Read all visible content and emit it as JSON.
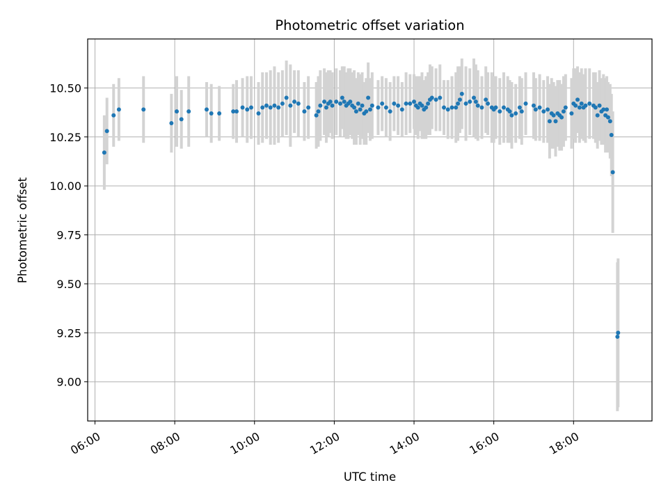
{
  "chart_data": {
    "type": "scatter",
    "title": "Photometric offset variation",
    "xlabel": "UTC time",
    "ylabel": "Photometric offset",
    "xlim": [
      "05:49",
      "19:58"
    ],
    "ylim": [
      8.8,
      10.75
    ],
    "x_ticks": [
      "06:00",
      "08:00",
      "10:00",
      "12:00",
      "14:00",
      "16:00",
      "18:00"
    ],
    "y_ticks": [
      "9.00",
      "9.25",
      "9.50",
      "9.75",
      "10.00",
      "10.25",
      "10.50"
    ],
    "grid": true,
    "errorbar_color": "#d3d3d3",
    "point_color": "#1f77b4",
    "points": [
      {
        "x": "06:14",
        "y": 10.17,
        "err": 0.19
      },
      {
        "x": "06:18",
        "y": 10.28,
        "err": 0.17
      },
      {
        "x": "06:28",
        "y": 10.36,
        "err": 0.16
      },
      {
        "x": "06:36",
        "y": 10.39,
        "err": 0.16
      },
      {
        "x": "07:13",
        "y": 10.39,
        "err": 0.17
      },
      {
        "x": "07:55",
        "y": 10.32,
        "err": 0.15
      },
      {
        "x": "08:03",
        "y": 10.38,
        "err": 0.18
      },
      {
        "x": "08:10",
        "y": 10.34,
        "err": 0.15
      },
      {
        "x": "08:21",
        "y": 10.38,
        "err": 0.18
      },
      {
        "x": "08:48",
        "y": 10.39,
        "err": 0.14
      },
      {
        "x": "08:55",
        "y": 10.37,
        "err": 0.15
      },
      {
        "x": "09:07",
        "y": 10.37,
        "err": 0.14
      },
      {
        "x": "09:28",
        "y": 10.38,
        "err": 0.14
      },
      {
        "x": "09:33",
        "y": 10.38,
        "err": 0.16
      },
      {
        "x": "09:42",
        "y": 10.4,
        "err": 0.15
      },
      {
        "x": "09:49",
        "y": 10.39,
        "err": 0.17
      },
      {
        "x": "09:55",
        "y": 10.4,
        "err": 0.16
      },
      {
        "x": "10:06",
        "y": 10.37,
        "err": 0.16
      },
      {
        "x": "10:12",
        "y": 10.4,
        "err": 0.18
      },
      {
        "x": "10:18",
        "y": 10.41,
        "err": 0.17
      },
      {
        "x": "10:24",
        "y": 10.4,
        "err": 0.19
      },
      {
        "x": "10:30",
        "y": 10.41,
        "err": 0.2
      },
      {
        "x": "10:36",
        "y": 10.4,
        "err": 0.18
      },
      {
        "x": "10:42",
        "y": 10.42,
        "err": 0.17
      },
      {
        "x": "10:48",
        "y": 10.45,
        "err": 0.19
      },
      {
        "x": "10:54",
        "y": 10.41,
        "err": 0.21
      },
      {
        "x": "11:00",
        "y": 10.43,
        "err": 0.16
      },
      {
        "x": "11:06",
        "y": 10.42,
        "err": 0.17
      },
      {
        "x": "11:15",
        "y": 10.38,
        "err": 0.15
      },
      {
        "x": "11:21",
        "y": 10.4,
        "err": 0.16
      },
      {
        "x": "11:33",
        "y": 10.36,
        "err": 0.17
      },
      {
        "x": "11:36",
        "y": 10.38,
        "err": 0.18
      },
      {
        "x": "11:39",
        "y": 10.41,
        "err": 0.18
      },
      {
        "x": "11:45",
        "y": 10.43,
        "err": 0.17
      },
      {
        "x": "11:48",
        "y": 10.4,
        "err": 0.18
      },
      {
        "x": "11:51",
        "y": 10.42,
        "err": 0.17
      },
      {
        "x": "11:54",
        "y": 10.43,
        "err": 0.16
      },
      {
        "x": "11:57",
        "y": 10.41,
        "err": 0.17
      },
      {
        "x": "12:03",
        "y": 10.43,
        "err": 0.17
      },
      {
        "x": "12:09",
        "y": 10.42,
        "err": 0.17
      },
      {
        "x": "12:12",
        "y": 10.45,
        "err": 0.16
      },
      {
        "x": "12:15",
        "y": 10.43,
        "err": 0.18
      },
      {
        "x": "12:18",
        "y": 10.41,
        "err": 0.17
      },
      {
        "x": "12:21",
        "y": 10.42,
        "err": 0.18
      },
      {
        "x": "12:24",
        "y": 10.43,
        "err": 0.17
      },
      {
        "x": "12:27",
        "y": 10.41,
        "err": 0.17
      },
      {
        "x": "12:30",
        "y": 10.4,
        "err": 0.19
      },
      {
        "x": "12:33",
        "y": 10.38,
        "err": 0.17
      },
      {
        "x": "12:36",
        "y": 10.42,
        "err": 0.16
      },
      {
        "x": "12:39",
        "y": 10.39,
        "err": 0.18
      },
      {
        "x": "12:42",
        "y": 10.41,
        "err": 0.17
      },
      {
        "x": "12:45",
        "y": 10.37,
        "err": 0.16
      },
      {
        "x": "12:48",
        "y": 10.38,
        "err": 0.17
      },
      {
        "x": "12:51",
        "y": 10.45,
        "err": 0.18
      },
      {
        "x": "12:54",
        "y": 10.39,
        "err": 0.16
      },
      {
        "x": "12:57",
        "y": 10.41,
        "err": 0.17
      },
      {
        "x": "13:06",
        "y": 10.4,
        "err": 0.14
      },
      {
        "x": "13:12",
        "y": 10.42,
        "err": 0.14
      },
      {
        "x": "13:18",
        "y": 10.4,
        "err": 0.15
      },
      {
        "x": "13:24",
        "y": 10.38,
        "err": 0.15
      },
      {
        "x": "13:30",
        "y": 10.42,
        "err": 0.14
      },
      {
        "x": "13:36",
        "y": 10.41,
        "err": 0.15
      },
      {
        "x": "13:42",
        "y": 10.39,
        "err": 0.14
      },
      {
        "x": "13:48",
        "y": 10.42,
        "err": 0.16
      },
      {
        "x": "13:54",
        "y": 10.42,
        "err": 0.15
      },
      {
        "x": "14:00",
        "y": 10.43,
        "err": 0.14
      },
      {
        "x": "14:03",
        "y": 10.41,
        "err": 0.15
      },
      {
        "x": "14:06",
        "y": 10.4,
        "err": 0.16
      },
      {
        "x": "14:09",
        "y": 10.42,
        "err": 0.14
      },
      {
        "x": "14:12",
        "y": 10.41,
        "err": 0.17
      },
      {
        "x": "14:15",
        "y": 10.39,
        "err": 0.15
      },
      {
        "x": "14:18",
        "y": 10.4,
        "err": 0.16
      },
      {
        "x": "14:21",
        "y": 10.42,
        "err": 0.16
      },
      {
        "x": "14:24",
        "y": 10.44,
        "err": 0.18
      },
      {
        "x": "14:27",
        "y": 10.45,
        "err": 0.16
      },
      {
        "x": "14:33",
        "y": 10.44,
        "err": 0.16
      },
      {
        "x": "14:39",
        "y": 10.45,
        "err": 0.17
      },
      {
        "x": "14:45",
        "y": 10.4,
        "err": 0.14
      },
      {
        "x": "14:51",
        "y": 10.39,
        "err": 0.15
      },
      {
        "x": "14:57",
        "y": 10.4,
        "err": 0.16
      },
      {
        "x": "15:03",
        "y": 10.4,
        "err": 0.18
      },
      {
        "x": "15:06",
        "y": 10.42,
        "err": 0.19
      },
      {
        "x": "15:09",
        "y": 10.44,
        "err": 0.17
      },
      {
        "x": "15:12",
        "y": 10.47,
        "err": 0.18
      },
      {
        "x": "15:18",
        "y": 10.42,
        "err": 0.19
      },
      {
        "x": "15:24",
        "y": 10.43,
        "err": 0.17
      },
      {
        "x": "15:30",
        "y": 10.45,
        "err": 0.2
      },
      {
        "x": "15:33",
        "y": 10.43,
        "err": 0.19
      },
      {
        "x": "15:36",
        "y": 10.41,
        "err": 0.18
      },
      {
        "x": "15:42",
        "y": 10.4,
        "err": 0.16
      },
      {
        "x": "15:48",
        "y": 10.44,
        "err": 0.17
      },
      {
        "x": "15:51",
        "y": 10.42,
        "err": 0.16
      },
      {
        "x": "15:57",
        "y": 10.4,
        "err": 0.18
      },
      {
        "x": "16:00",
        "y": 10.39,
        "err": 0.17
      },
      {
        "x": "16:03",
        "y": 10.4,
        "err": 0.16
      },
      {
        "x": "16:09",
        "y": 10.38,
        "err": 0.17
      },
      {
        "x": "16:15",
        "y": 10.4,
        "err": 0.18
      },
      {
        "x": "16:21",
        "y": 10.39,
        "err": 0.17
      },
      {
        "x": "16:24",
        "y": 10.38,
        "err": 0.16
      },
      {
        "x": "16:27",
        "y": 10.36,
        "err": 0.17
      },
      {
        "x": "16:33",
        "y": 10.37,
        "err": 0.15
      },
      {
        "x": "16:39",
        "y": 10.4,
        "err": 0.16
      },
      {
        "x": "16:42",
        "y": 10.38,
        "err": 0.17
      },
      {
        "x": "16:48",
        "y": 10.42,
        "err": 0.16
      },
      {
        "x": "17:00",
        "y": 10.41,
        "err": 0.17
      },
      {
        "x": "17:03",
        "y": 10.39,
        "err": 0.16
      },
      {
        "x": "17:09",
        "y": 10.4,
        "err": 0.17
      },
      {
        "x": "17:15",
        "y": 10.38,
        "err": 0.16
      },
      {
        "x": "17:21",
        "y": 10.39,
        "err": 0.17
      },
      {
        "x": "17:24",
        "y": 10.33,
        "err": 0.19
      },
      {
        "x": "17:27",
        "y": 10.37,
        "err": 0.18
      },
      {
        "x": "17:30",
        "y": 10.36,
        "err": 0.17
      },
      {
        "x": "17:33",
        "y": 10.33,
        "err": 0.18
      },
      {
        "x": "17:36",
        "y": 10.37,
        "err": 0.17
      },
      {
        "x": "17:39",
        "y": 10.36,
        "err": 0.18
      },
      {
        "x": "17:42",
        "y": 10.35,
        "err": 0.17
      },
      {
        "x": "17:45",
        "y": 10.38,
        "err": 0.18
      },
      {
        "x": "17:48",
        "y": 10.4,
        "err": 0.17
      },
      {
        "x": "17:57",
        "y": 10.37,
        "err": 0.18
      },
      {
        "x": "18:00",
        "y": 10.42,
        "err": 0.18
      },
      {
        "x": "18:03",
        "y": 10.41,
        "err": 0.19
      },
      {
        "x": "18:06",
        "y": 10.44,
        "err": 0.17
      },
      {
        "x": "18:09",
        "y": 10.4,
        "err": 0.18
      },
      {
        "x": "18:12",
        "y": 10.42,
        "err": 0.18
      },
      {
        "x": "18:15",
        "y": 10.4,
        "err": 0.17
      },
      {
        "x": "18:18",
        "y": 10.41,
        "err": 0.19
      },
      {
        "x": "18:24",
        "y": 10.42,
        "err": 0.18
      },
      {
        "x": "18:30",
        "y": 10.41,
        "err": 0.17
      },
      {
        "x": "18:33",
        "y": 10.4,
        "err": 0.18
      },
      {
        "x": "18:36",
        "y": 10.36,
        "err": 0.17
      },
      {
        "x": "18:39",
        "y": 10.41,
        "err": 0.18
      },
      {
        "x": "18:42",
        "y": 10.38,
        "err": 0.17
      },
      {
        "x": "18:45",
        "y": 10.39,
        "err": 0.18
      },
      {
        "x": "18:48",
        "y": 10.36,
        "err": 0.19
      },
      {
        "x": "18:50",
        "y": 10.39,
        "err": 0.17
      },
      {
        "x": "18:52",
        "y": 10.35,
        "err": 0.18
      },
      {
        "x": "18:55",
        "y": 10.33,
        "err": 0.19
      },
      {
        "x": "18:57",
        "y": 10.26,
        "err": 0.21
      },
      {
        "x": "18:59",
        "y": 10.07,
        "err": 0.31
      },
      {
        "x": "19:06",
        "y": 9.23,
        "err": 0.38
      },
      {
        "x": "19:07",
        "y": 9.25,
        "err": 0.38
      }
    ]
  }
}
